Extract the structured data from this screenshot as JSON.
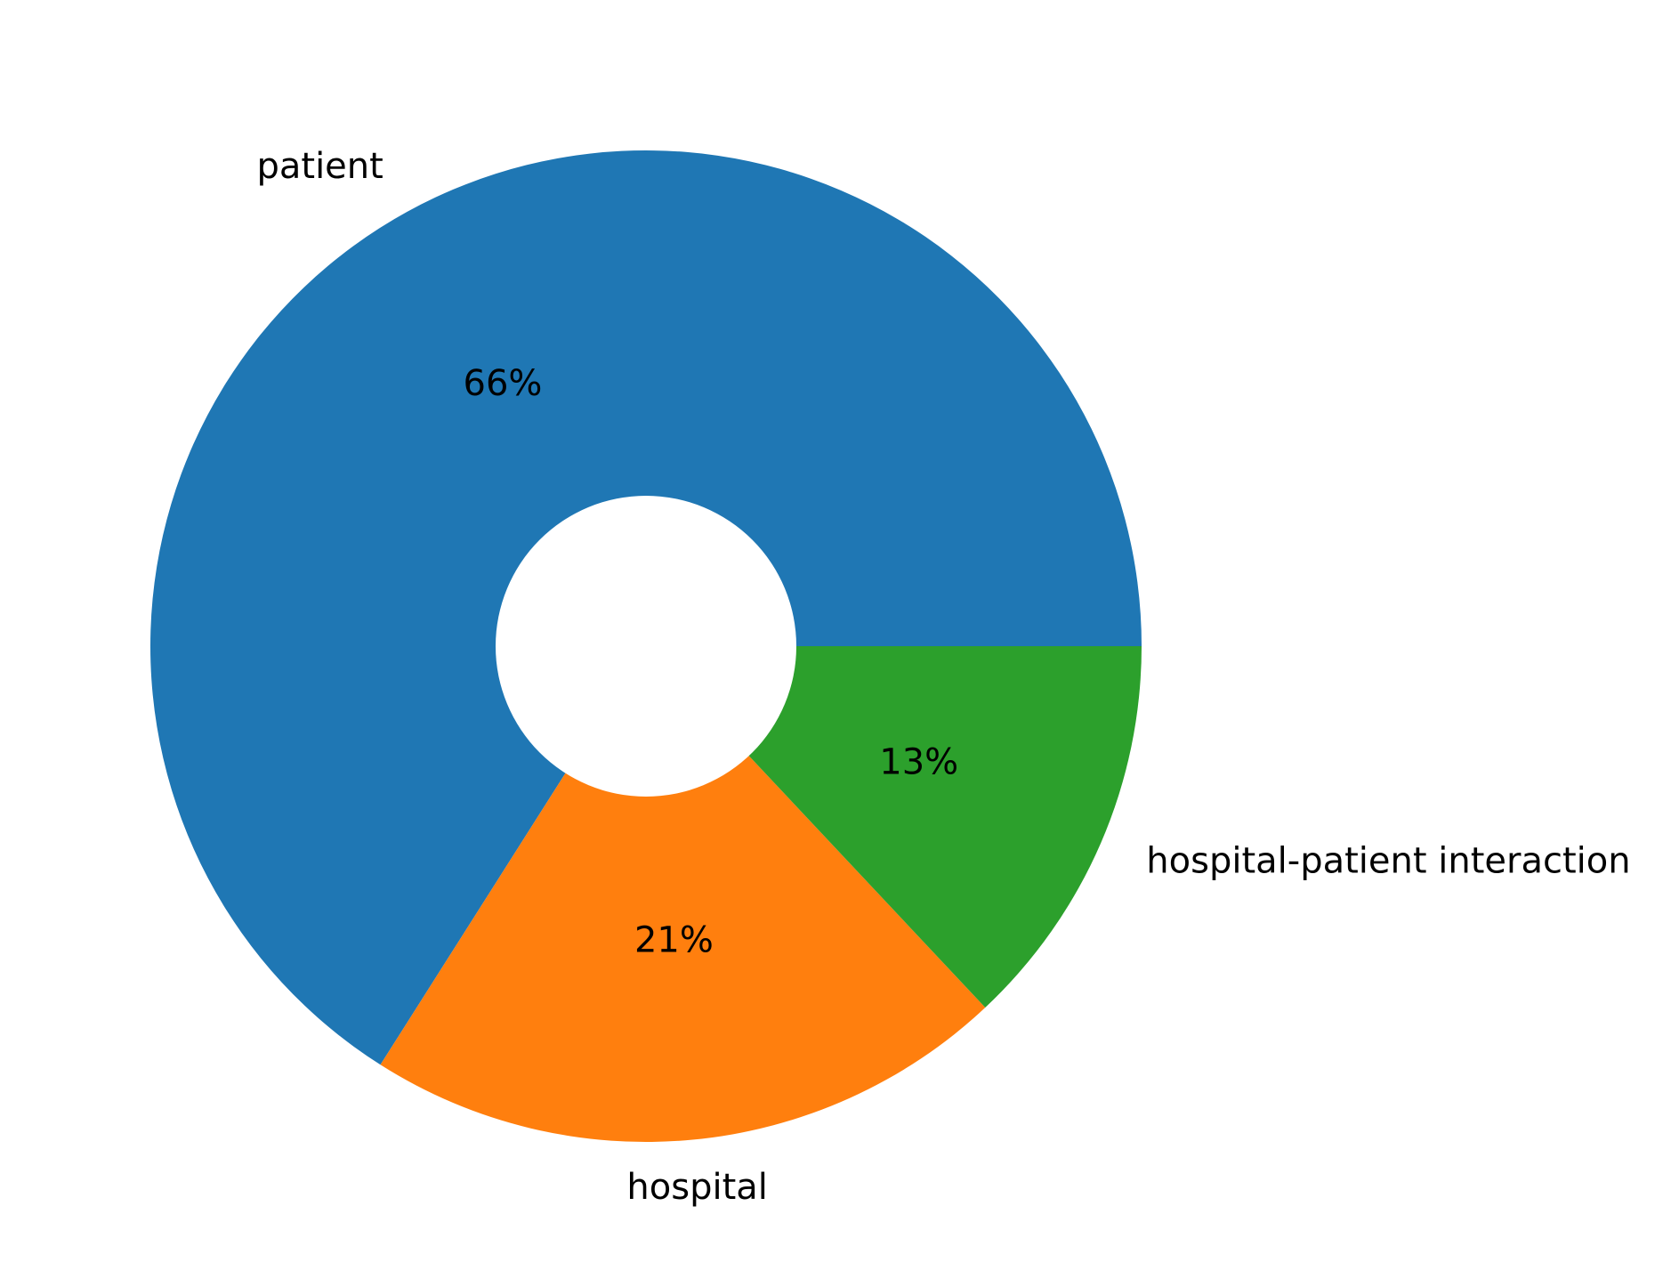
{
  "chart_data": {
    "type": "pie",
    "variant": "donut",
    "title": "",
    "categories": [
      "patient",
      "hospital",
      "hospital-patient interaction"
    ],
    "values": [
      66,
      21,
      13
    ],
    "percent_labels": [
      "66%",
      "21%",
      "13%"
    ],
    "colors": [
      "#1f77b4",
      "#ff7f0e",
      "#2ca02c"
    ],
    "direction": "counterclockwise",
    "legend": "none"
  }
}
